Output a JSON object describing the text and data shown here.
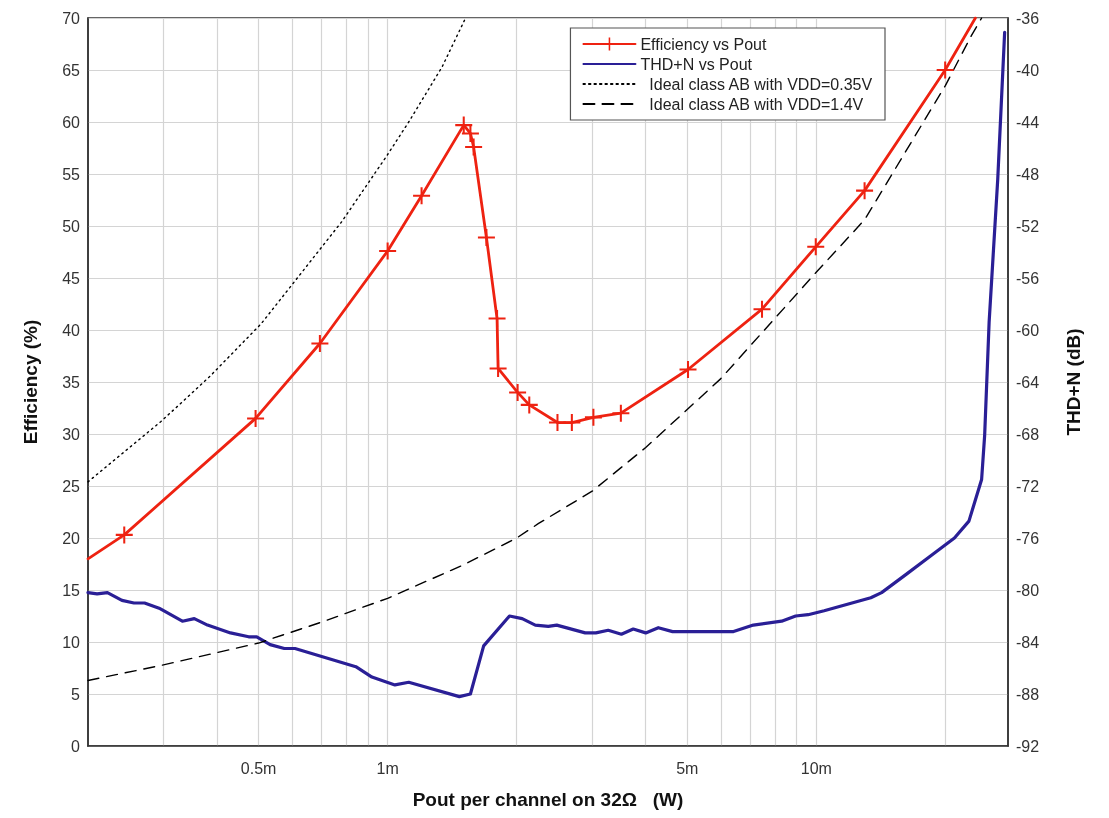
{
  "chart_data": {
    "type": "line",
    "xlabel": "Pout per channel on 32Ω   (W)",
    "ylabel": "Efficiency (%)",
    "y2label": "THD+N (dB)",
    "log": "x",
    "xlim": [
      0.2,
      28
    ],
    "xticks": [
      {
        "value": 0.3,
        "label": null
      },
      {
        "value": 0.4,
        "label": null
      },
      {
        "value": 0.5,
        "label": "0.5m"
      },
      {
        "value": 0.6,
        "label": null
      },
      {
        "value": 0.7,
        "label": null
      },
      {
        "value": 0.8,
        "label": null
      },
      {
        "value": 0.9,
        "label": null
      },
      {
        "value": 1,
        "label": "1m"
      },
      {
        "value": 2,
        "label": null
      },
      {
        "value": 3,
        "label": null
      },
      {
        "value": 4,
        "label": null
      },
      {
        "value": 5,
        "label": "5m"
      },
      {
        "value": 6,
        "label": null
      },
      {
        "value": 7,
        "label": null
      },
      {
        "value": 8,
        "label": null
      },
      {
        "value": 9,
        "label": null
      },
      {
        "value": 10,
        "label": "10m"
      },
      {
        "value": 20,
        "label": null
      }
    ],
    "ylim": [
      0,
      70
    ],
    "yticks": [
      0,
      5,
      10,
      15,
      20,
      25,
      30,
      35,
      40,
      45,
      50,
      55,
      60,
      65,
      70
    ],
    "y2lim": [
      -92,
      -36
    ],
    "y2ticks": [
      -92,
      -88,
      -84,
      -80,
      -76,
      -72,
      -68,
      -64,
      -60,
      -56,
      -52,
      -48,
      -44,
      -40,
      -36
    ],
    "grid": true,
    "legend": "top right",
    "series": [
      {
        "name": "Efficiency vs Pout",
        "color": "#ee2211",
        "marker": "cross",
        "line_style": "solid",
        "x": [
          0.2,
          0.243,
          0.492,
          0.695,
          1.0,
          1.2,
          1.505,
          1.56,
          1.587,
          1.7,
          1.8,
          1.81,
          2.01,
          2.14,
          2.49,
          2.69,
          3.02,
          3.5,
          5.02,
          7.47,
          9.97,
          12.96,
          19.98,
          23.5
        ],
        "values": [
          18.0,
          20.3,
          31.5,
          38.7,
          47.6,
          52.9,
          59.7,
          58.9,
          57.6,
          48.9,
          41.1,
          36.3,
          34.0,
          32.8,
          31.1,
          31.1,
          31.6,
          32.0,
          36.2,
          42.0,
          48.0,
          53.4,
          65.0,
          70
        ]
      },
      {
        "name": "THD+N vs Pout",
        "color": "#2a1f96",
        "marker": "none",
        "line_style": "solid",
        "axis": "y2",
        "x": [
          0.2,
          0.21,
          0.222,
          0.24,
          0.256,
          0.271,
          0.293,
          0.332,
          0.354,
          0.38,
          0.43,
          0.474,
          0.495,
          0.532,
          0.574,
          0.608,
          0.843,
          0.919,
          1.04,
          1.12,
          1.47,
          1.56,
          1.675,
          1.924,
          2.06,
          2.21,
          2.37,
          2.48,
          2.89,
          3.06,
          3.27,
          3.51,
          3.74,
          4.0,
          4.28,
          4.62,
          6.41,
          7.13,
          8.3,
          8.95,
          9.57,
          10.43,
          13.4,
          14.2,
          16.2,
          18.6,
          21.0,
          22.7,
          24.3,
          24.7,
          25.3,
          26.5,
          27.5
        ],
        "values": [
          -80.2,
          -80.3,
          -80.2,
          -80.8,
          -81.0,
          -81.0,
          -81.4,
          -82.4,
          -82.2,
          -82.7,
          -83.3,
          -83.6,
          -83.6,
          -84.2,
          -84.5,
          -84.5,
          -85.9,
          -86.7,
          -87.3,
          -87.1,
          -88.2,
          -88.0,
          -84.3,
          -82.0,
          -82.2,
          -82.7,
          -82.8,
          -82.7,
          -83.3,
          -83.3,
          -83.1,
          -83.4,
          -83.0,
          -83.3,
          -82.9,
          -83.2,
          -83.2,
          -82.7,
          -82.4,
          -82.0,
          -81.9,
          -81.6,
          -80.6,
          -80.2,
          -78.8,
          -77.3,
          -76.0,
          -74.7,
          -71.5,
          -68.1,
          -59.4,
          -48.4,
          -37.1
        ]
      },
      {
        "name": "  Ideal class AB with VDD=0.35V",
        "color": "#000000",
        "marker": "none",
        "line_style": "dotted",
        "x": [
          0.2,
          0.296,
          0.384,
          0.507,
          0.597,
          0.781,
          0.99,
          1.12,
          1.34,
          1.52
        ],
        "values": [
          25.4,
          31.2,
          35.5,
          40.6,
          44.3,
          50.4,
          56.6,
          60.0,
          65.3,
          70
        ]
      },
      {
        "name": "  Ideal class AB with VDD=1.4V",
        "color": "#000000",
        "marker": "none",
        "line_style": "dashed",
        "x": [
          0.2,
          0.3,
          0.5,
          0.7,
          1.0,
          1.5,
          2.0,
          2.25,
          3.0,
          4.0,
          5.98,
          9.97,
          12.96,
          20.0,
          23.0,
          24.3
        ],
        "values": [
          6.3,
          7.8,
          9.9,
          11.9,
          14.2,
          17.4,
          20.0,
          21.4,
          24.5,
          28.7,
          35.3,
          45.5,
          50.6,
          63.5,
          68.3,
          70
        ]
      }
    ]
  }
}
